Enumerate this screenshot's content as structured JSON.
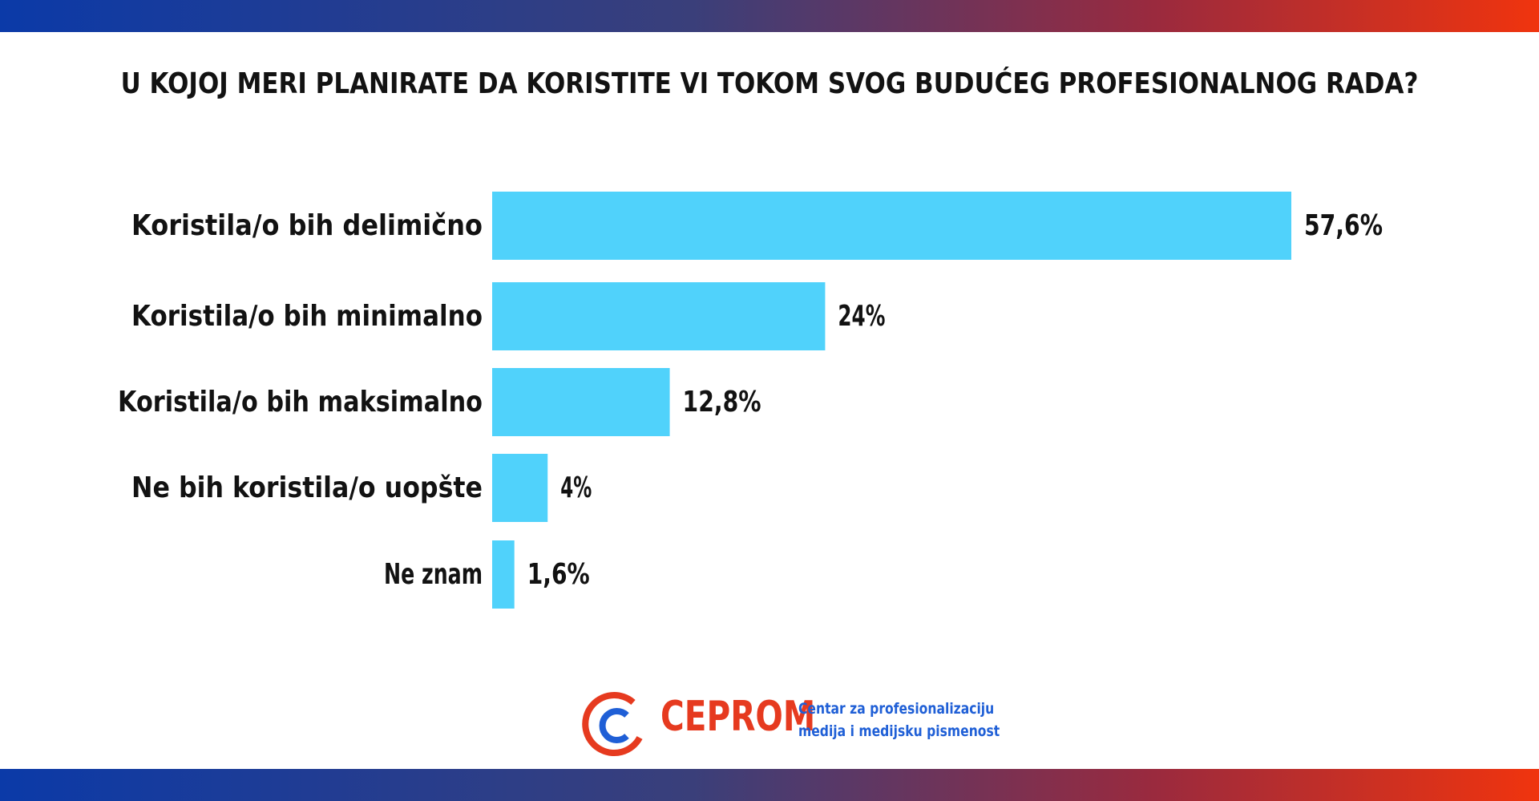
{
  "colors": {
    "bar": "#50d2fb",
    "text": "#121212",
    "band_left": "#0b3aa8",
    "band_right": "#f0340e",
    "logo_red": "#e63a1f",
    "logo_blue": "#1f5fd6"
  },
  "logo": {
    "name": "CEPROM",
    "tagline_line1": "Centar za profesionalizaciju",
    "tagline_line2": "medija i medijsku pismenost"
  },
  "chart_data": {
    "type": "bar",
    "orientation": "horizontal",
    "title": "U KOJOJ MERI PLANIRATE DA KORISTITE VI TOKOM SVOG BUDUĆEG PROFESIONALNOG RADA?",
    "categories": [
      "Koristila/o bih delimično",
      "Koristila/o bih minimalno",
      "Koristila/o bih maksimalno",
      "Ne bih koristila/o uopšte",
      "Ne znam"
    ],
    "values": [
      57.6,
      24,
      12.8,
      4,
      1.6
    ],
    "value_labels": [
      "57,6%",
      "24%",
      "12,8%",
      "4%",
      "1,6%"
    ],
    "xlim": [
      0,
      57.6
    ],
    "grid": false,
    "legend": "none"
  }
}
